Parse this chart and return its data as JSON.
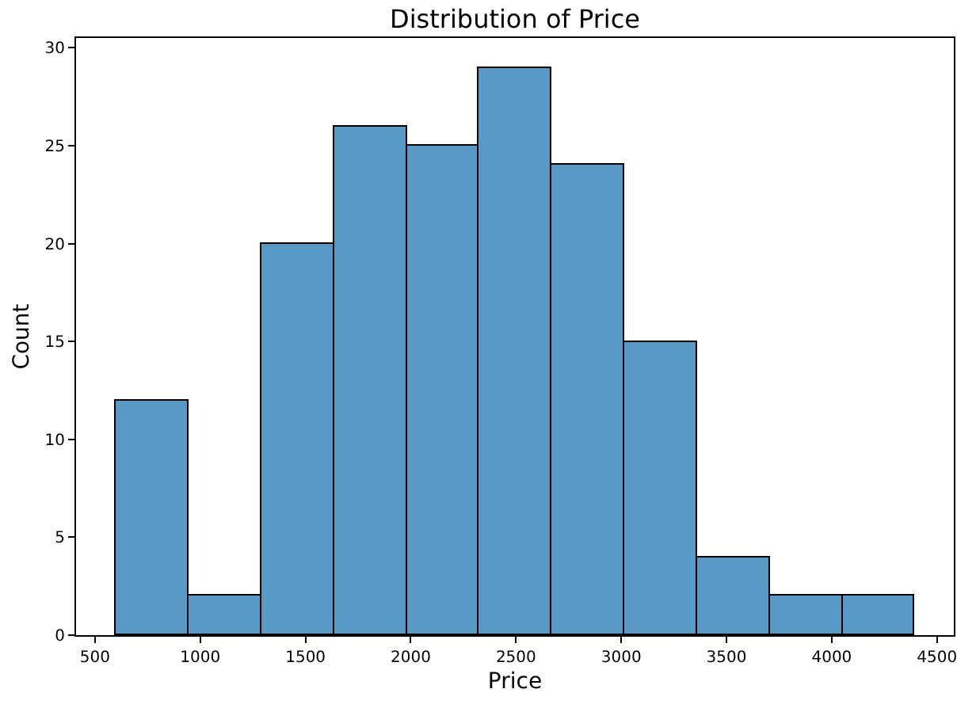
{
  "chart_data": {
    "type": "histogram",
    "title": "Distribution of Price",
    "xlabel": "Price",
    "ylabel": "Count",
    "bins": [
      600,
      945,
      1290,
      1635,
      1980,
      2325,
      2670,
      3015,
      3360,
      3705,
      4050,
      4395
    ],
    "values": [
      12,
      2,
      20,
      26,
      25,
      29,
      24,
      15,
      4,
      2,
      2
    ],
    "color": "#5799c7",
    "xlim": [
      410,
      4580
    ],
    "xticks": [
      500,
      1000,
      1500,
      2000,
      2500,
      3000,
      3500,
      4000,
      4500
    ],
    "ylim": [
      0,
      30.5
    ],
    "yticks": [
      0,
      5,
      10,
      15,
      20,
      25,
      30
    ]
  }
}
